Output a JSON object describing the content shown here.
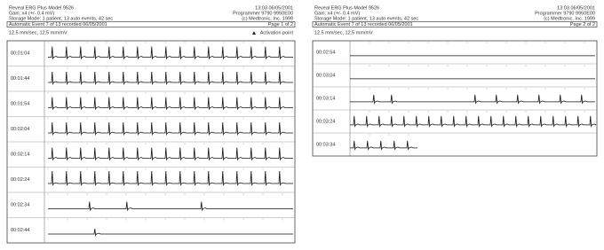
{
  "pages": [
    {
      "header": {
        "title": "Reveal ERG Plus Model 9526",
        "time": "13:03 06/05/2001",
        "gain": "Gain: x4 (+/- 0.4 mV)",
        "programmer": "Programmer 9790 9950E00",
        "storage": "Storage Mode: 1 patient, 13 auto events, 42 sec",
        "company": "(c) Medtronic, Inc. 1999",
        "event": "Automatic Event 7 of 13 recorded 06/05/2001",
        "page": "Page 1 of 2",
        "speed": "12.5 mm/sec, 12.5 mm/mV",
        "marker": "Activation point"
      },
      "rows": [
        "00:01:04",
        "00:01:44",
        "00:01:54",
        "00:02:04",
        "00:02:14",
        "00:02:24",
        "00:02:34",
        "00:02:44"
      ]
    },
    {
      "header": {
        "title": "Reveal ERG Plus Model 9526",
        "time": "13:03 06/05/2001",
        "gain": "Gain: x4 (+/- 0.4 mV)",
        "programmer": "Programmer 9790 9950E00",
        "storage": "Storage Mode: 1 patient, 13 auto events, 42 sec",
        "company": "(c) Medtronic, Inc. 1999",
        "event": "Automatic Event 7 of 13 recorded 06/05/2001",
        "page": "Page 2 of 2",
        "speed": "12.5 mm/sec, 12.5 mm/mV"
      },
      "rows": [
        "00:02:54",
        "00:03:04",
        "00:03:14",
        "00:03:24",
        "00:03:34"
      ]
    }
  ]
}
